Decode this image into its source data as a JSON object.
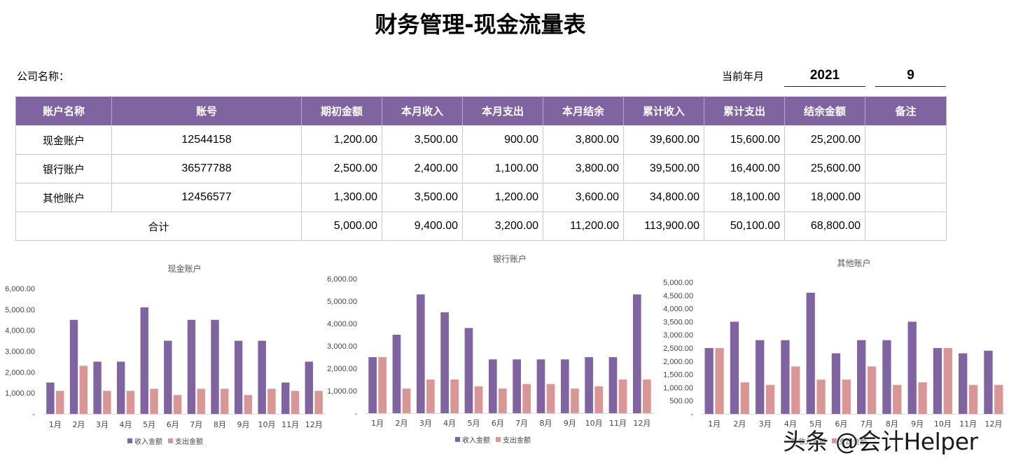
{
  "header": {
    "title": "财务管理-现金流量表",
    "company_label": "公司名称：",
    "period_label": "当前年月",
    "year": "2021",
    "month": "9"
  },
  "table": {
    "columns": [
      "账户名称",
      "账号",
      "期初金额",
      "本月收入",
      "本月支出",
      "本月结余",
      "累计收入",
      "累计支出",
      "结余金额",
      "备注"
    ],
    "rows": [
      {
        "name": "现金账户",
        "account": "12544158",
        "opening": "1,200.00",
        "income": "3,500.00",
        "expense": "900.00",
        "balance": "3,800.00",
        "cum_income": "39,600.00",
        "cum_expense": "15,600.00",
        "remaining": "25,200.00",
        "note": ""
      },
      {
        "name": "银行账户",
        "account": "36577788",
        "opening": "2,500.00",
        "income": "2,400.00",
        "expense": "1,100.00",
        "balance": "3,800.00",
        "cum_income": "39,500.00",
        "cum_expense": "16,400.00",
        "remaining": "25,600.00",
        "note": ""
      },
      {
        "name": "其他账户",
        "account": "12456577",
        "opening": "1,300.00",
        "income": "3,500.00",
        "expense": "1,200.00",
        "balance": "3,600.00",
        "cum_income": "34,800.00",
        "cum_expense": "18,100.00",
        "remaining": "18,000.00",
        "note": ""
      }
    ],
    "total": {
      "label": "合计",
      "opening": "5,000.00",
      "income": "9,400.00",
      "expense": "3,200.00",
      "balance": "11,200.00",
      "cum_income": "113,900.00",
      "cum_expense": "50,100.00",
      "remaining": "68,800.00",
      "note": ""
    }
  },
  "colors": {
    "income": "#8064a2",
    "expense": "#d99694",
    "header_bg": "#8064a2"
  },
  "watermark": "头条 @会计Helper",
  "chart_data": [
    {
      "type": "bar",
      "title": "现金账户",
      "categories": [
        "1月",
        "2月",
        "3月",
        "4月",
        "5月",
        "6月",
        "7月",
        "8月",
        "9月",
        "10月",
        "11月",
        "12月"
      ],
      "series": [
        {
          "name": "收入金额",
          "values": [
            1500,
            4500,
            2500,
            2500,
            5100,
            3500,
            4500,
            4500,
            3500,
            3500,
            1500,
            2500
          ]
        },
        {
          "name": "支出金额",
          "values": [
            1100,
            2300,
            1100,
            1100,
            1200,
            900,
            1200,
            1200,
            900,
            1200,
            1100,
            1100
          ]
        }
      ],
      "ylim": [
        0,
        6000
      ],
      "yticks": [
        "-",
        "1,000.00",
        "2,000.00",
        "3,000.00",
        "4,000.00",
        "5,000.00",
        "6,000.00"
      ],
      "legend": "bottom"
    },
    {
      "type": "bar",
      "title": "银行账户",
      "categories": [
        "1月",
        "2月",
        "3月",
        "4月",
        "5月",
        "6月",
        "7月",
        "8月",
        "9月",
        "10月",
        "11月",
        "12月"
      ],
      "series": [
        {
          "name": "收入金额",
          "values": [
            2500,
            3500,
            5300,
            4500,
            3800,
            2400,
            2400,
            2400,
            2400,
            2500,
            2500,
            5300
          ]
        },
        {
          "name": "支出金额",
          "values": [
            2500,
            1100,
            1500,
            1500,
            1200,
            1100,
            1300,
            1300,
            1100,
            1200,
            1500,
            1500
          ]
        }
      ],
      "ylim": [
        0,
        6000
      ],
      "yticks": [
        "-",
        "1,000.00",
        "2,000.00",
        "3,000.00",
        "4,000.00",
        "5,000.00",
        "6,000.00"
      ],
      "legend": "bottom"
    },
    {
      "type": "bar",
      "title": "其他账户",
      "categories": [
        "1月",
        "2月",
        "3月",
        "4月",
        "5月",
        "6月",
        "7月",
        "8月",
        "9月",
        "10月",
        "11月",
        "12月"
      ],
      "series": [
        {
          "name": "收入金额",
          "values": [
            2500,
            3500,
            2800,
            2800,
            4600,
            2300,
            2800,
            2800,
            3500,
            2500,
            2300,
            2400
          ]
        },
        {
          "name": "支出金额",
          "values": [
            2500,
            1200,
            1100,
            1800,
            1300,
            1300,
            1800,
            1100,
            1200,
            2500,
            1100,
            1100
          ]
        }
      ],
      "ylim": [
        0,
        5000
      ],
      "yticks": [
        "-",
        "500.00",
        "1,000.00",
        "1,500.00",
        "2,000.00",
        "2,500.00",
        "3,000.00",
        "3,500.00",
        "4,000.00",
        "4,500.00",
        "5,000.00"
      ],
      "legend": "bottom"
    }
  ]
}
